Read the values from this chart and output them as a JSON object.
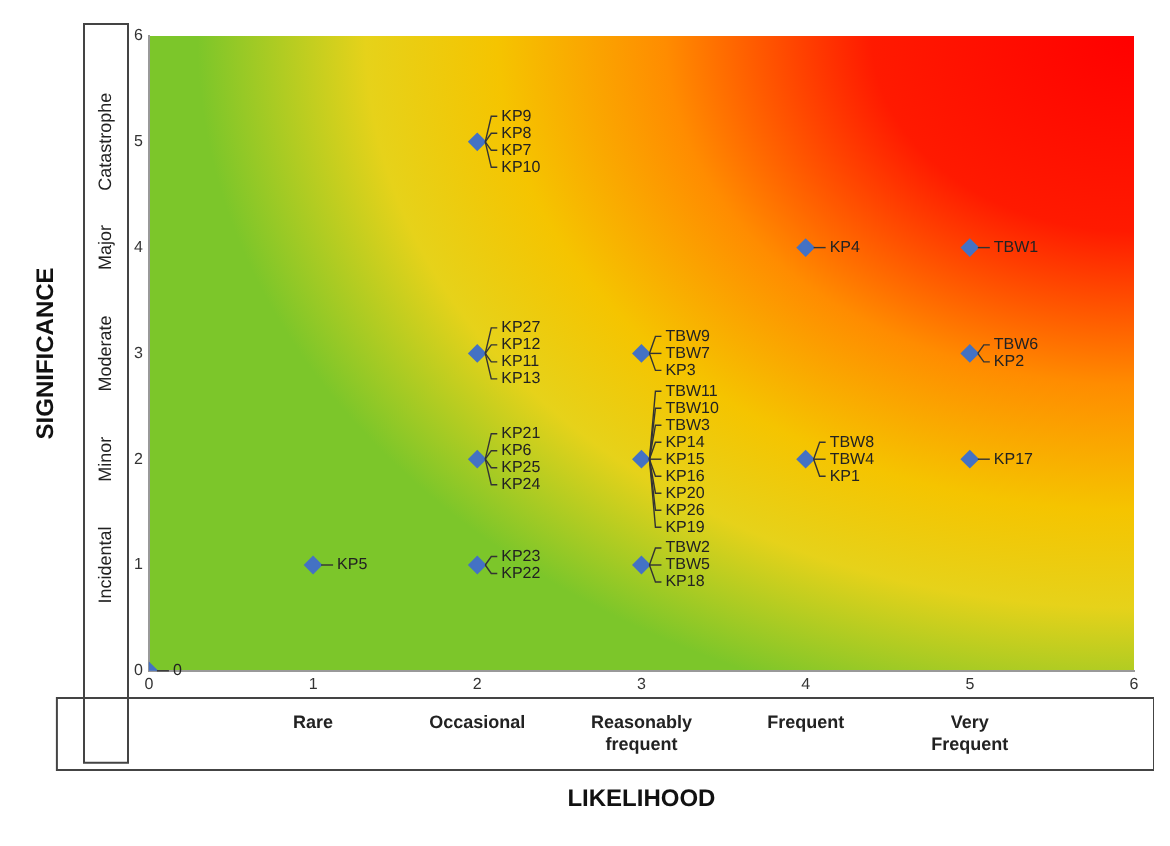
{
  "chart_data": {
    "type": "scatter",
    "xlabel": "LIKELIHOOD",
    "ylabel": "SIGNIFICANCE",
    "x": [
      0,
      1,
      2,
      2,
      2,
      2,
      3,
      3,
      3,
      4,
      4,
      5,
      5,
      5
    ],
    "series": [
      {
        "color": "#4472c4",
        "values": [
          0,
          1,
          5,
          3,
          2,
          1,
          3,
          2,
          1,
          4,
          2,
          4,
          3,
          2
        ]
      }
    ],
    "marker": "diamond",
    "xlim": [
      0,
      6
    ],
    "xticks": [
      0,
      1,
      2,
      3,
      4,
      5,
      6
    ],
    "ylim": [
      0,
      6
    ],
    "yticks": [
      0,
      1,
      2,
      3,
      4,
      5,
      6
    ],
    "grid": false,
    "legend": false,
    "annotations": [
      "Rare",
      "Occasional",
      "Reasonably frequent",
      "Frequent",
      "Very Frequent",
      "Incidental",
      "Minor",
      "Moderate",
      "Major",
      "Catastrophe",
      {
        "text": "0",
        "x": 0,
        "y": 0
      },
      {
        "text": "KP5",
        "x": 1,
        "y": 1
      },
      {
        "text": "KP9",
        "x": 2,
        "y": 5
      },
      {
        "text": "KP8",
        "x": 2,
        "y": 5
      },
      {
        "text": "KP7",
        "x": 2,
        "y": 5
      },
      {
        "text": "KP10",
        "x": 2,
        "y": 5
      },
      {
        "text": "KP27",
        "x": 2,
        "y": 3
      },
      {
        "text": "KP12",
        "x": 2,
        "y": 3
      },
      {
        "text": "KP11",
        "x": 2,
        "y": 3
      },
      {
        "text": "KP13",
        "x": 2,
        "y": 3
      },
      {
        "text": "KP21",
        "x": 2,
        "y": 2
      },
      {
        "text": "KP6",
        "x": 2,
        "y": 2
      },
      {
        "text": "KP25",
        "x": 2,
        "y": 2
      },
      {
        "text": "KP24",
        "x": 2,
        "y": 2
      },
      {
        "text": "KP23",
        "x": 2,
        "y": 1
      },
      {
        "text": "KP22",
        "x": 2,
        "y": 1
      },
      {
        "text": "TBW9",
        "x": 3,
        "y": 3
      },
      {
        "text": "TBW7",
        "x": 3,
        "y": 3
      },
      {
        "text": "KP3",
        "x": 3,
        "y": 3
      },
      {
        "text": "TBW11",
        "x": 3,
        "y": 2
      },
      {
        "text": "TBW10",
        "x": 3,
        "y": 2
      },
      {
        "text": "TBW3",
        "x": 3,
        "y": 2
      },
      {
        "text": "KP14",
        "x": 3,
        "y": 2
      },
      {
        "text": "KP15",
        "x": 3,
        "y": 2
      },
      {
        "text": "KP16",
        "x": 3,
        "y": 2
      },
      {
        "text": "KP20",
        "x": 3,
        "y": 2
      },
      {
        "text": "KP26",
        "x": 3,
        "y": 2
      },
      {
        "text": "KP19",
        "x": 3,
        "y": 2
      },
      {
        "text": "TBW2",
        "x": 3,
        "y": 1
      },
      {
        "text": "TBW5",
        "x": 3,
        "y": 1
      },
      {
        "text": "KP18",
        "x": 3,
        "y": 1
      },
      {
        "text": "KP4",
        "x": 4,
        "y": 4
      },
      {
        "text": "TBW8",
        "x": 4,
        "y": 2
      },
      {
        "text": "TBW4",
        "x": 4,
        "y": 2
      },
      {
        "text": "KP1",
        "x": 4,
        "y": 2
      },
      {
        "text": "TBW1",
        "x": 5,
        "y": 4
      },
      {
        "text": "TBW6",
        "x": 5,
        "y": 3
      },
      {
        "text": "KP2",
        "x": 5,
        "y": 3
      },
      {
        "text": "KP17",
        "x": 5,
        "y": 2
      }
    ]
  }
}
